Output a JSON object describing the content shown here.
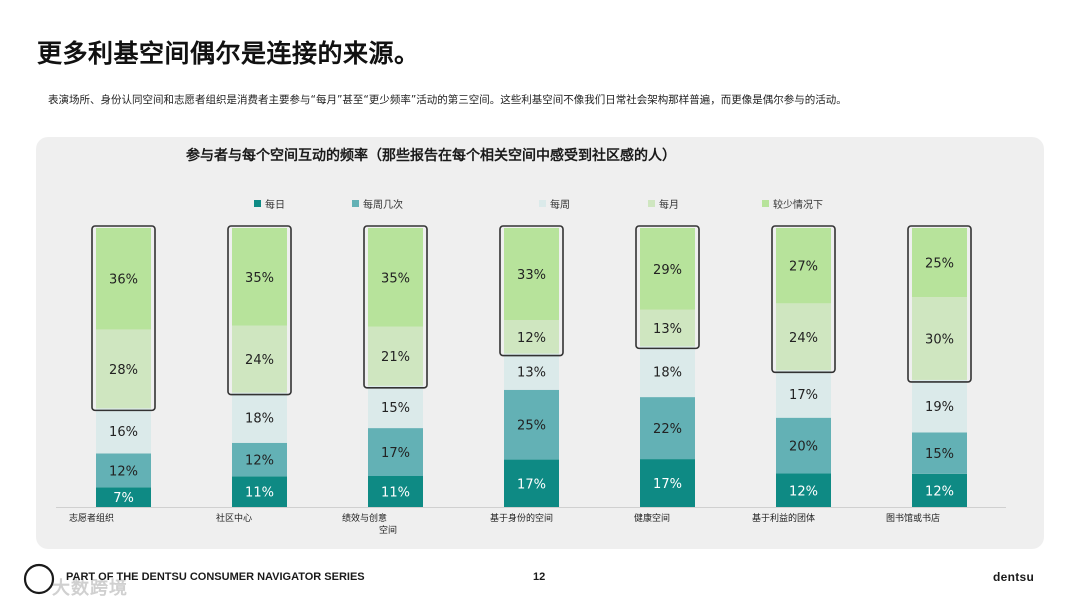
{
  "page": {
    "title": "更多利基空间偶尔是连接的来源。",
    "subtitle": "表演场所、身份认同空间和志愿者组织是消费者主要参与“每月”甚至“更少频率”活动的第三空间。这些利基空间不像我们日常社会架构那样普遍，而更像是偶尔参与的活动。",
    "footer_series": "PART OF THE DENTSU CONSUMER NAVIGATOR SERIES",
    "page_number": "12",
    "brand": "dentsu",
    "watermark": "大数跨境"
  },
  "colors": {
    "daily": "#0e8a84",
    "several_weekly": "#63b1b5",
    "weekly": "#dbeaea",
    "monthly": "#cfe6c0",
    "less_often": "#b7e39b",
    "panel": "#efefef",
    "highlight_border": "#333333"
  },
  "icons": {
    "logo": "compass-logo-icon"
  },
  "chart_data": {
    "type": "bar",
    "stacked": true,
    "title": "参与者与每个空间互动的频率（那些报告在每个相关空间中感受到社区感的人）",
    "categories": [
      "志愿者组织",
      "社区中心",
      "绩效与创意空间",
      "基于身份的空间",
      "健康空间",
      "基于利益的团体",
      "图书馆或书店"
    ],
    "category_label_lines": [
      [
        "志愿者组织"
      ],
      [
        "社区中心"
      ],
      [
        "绩效与创意",
        "空间"
      ],
      [
        "基于身份的空间"
      ],
      [
        "健康空间"
      ],
      [
        "基于利益的团体"
      ],
      [
        "图书馆或书店"
      ]
    ],
    "legend_position": "top",
    "series": [
      {
        "name": "每日",
        "color": "#0e8a84",
        "values": [
          7,
          11,
          11,
          17,
          17,
          12,
          12
        ]
      },
      {
        "name": "每周几次",
        "color": "#63b1b5",
        "values": [
          12,
          12,
          17,
          25,
          22,
          20,
          15
        ]
      },
      {
        "name": "每周",
        "color": "#dbeaea",
        "values": [
          16,
          18,
          15,
          13,
          18,
          17,
          19
        ]
      },
      {
        "name": "每月",
        "color": "#cfe6c0",
        "values": [
          28,
          24,
          21,
          12,
          13,
          24,
          30
        ]
      },
      {
        "name": "较少情况下",
        "color": "#b7e39b",
        "values": [
          36,
          35,
          35,
          33,
          29,
          27,
          25
        ]
      }
    ],
    "highlighted_series": [
      "每月",
      "较少情况下"
    ],
    "value_suffix": "%",
    "ylim": [
      0,
      100
    ],
    "grid": false
  }
}
